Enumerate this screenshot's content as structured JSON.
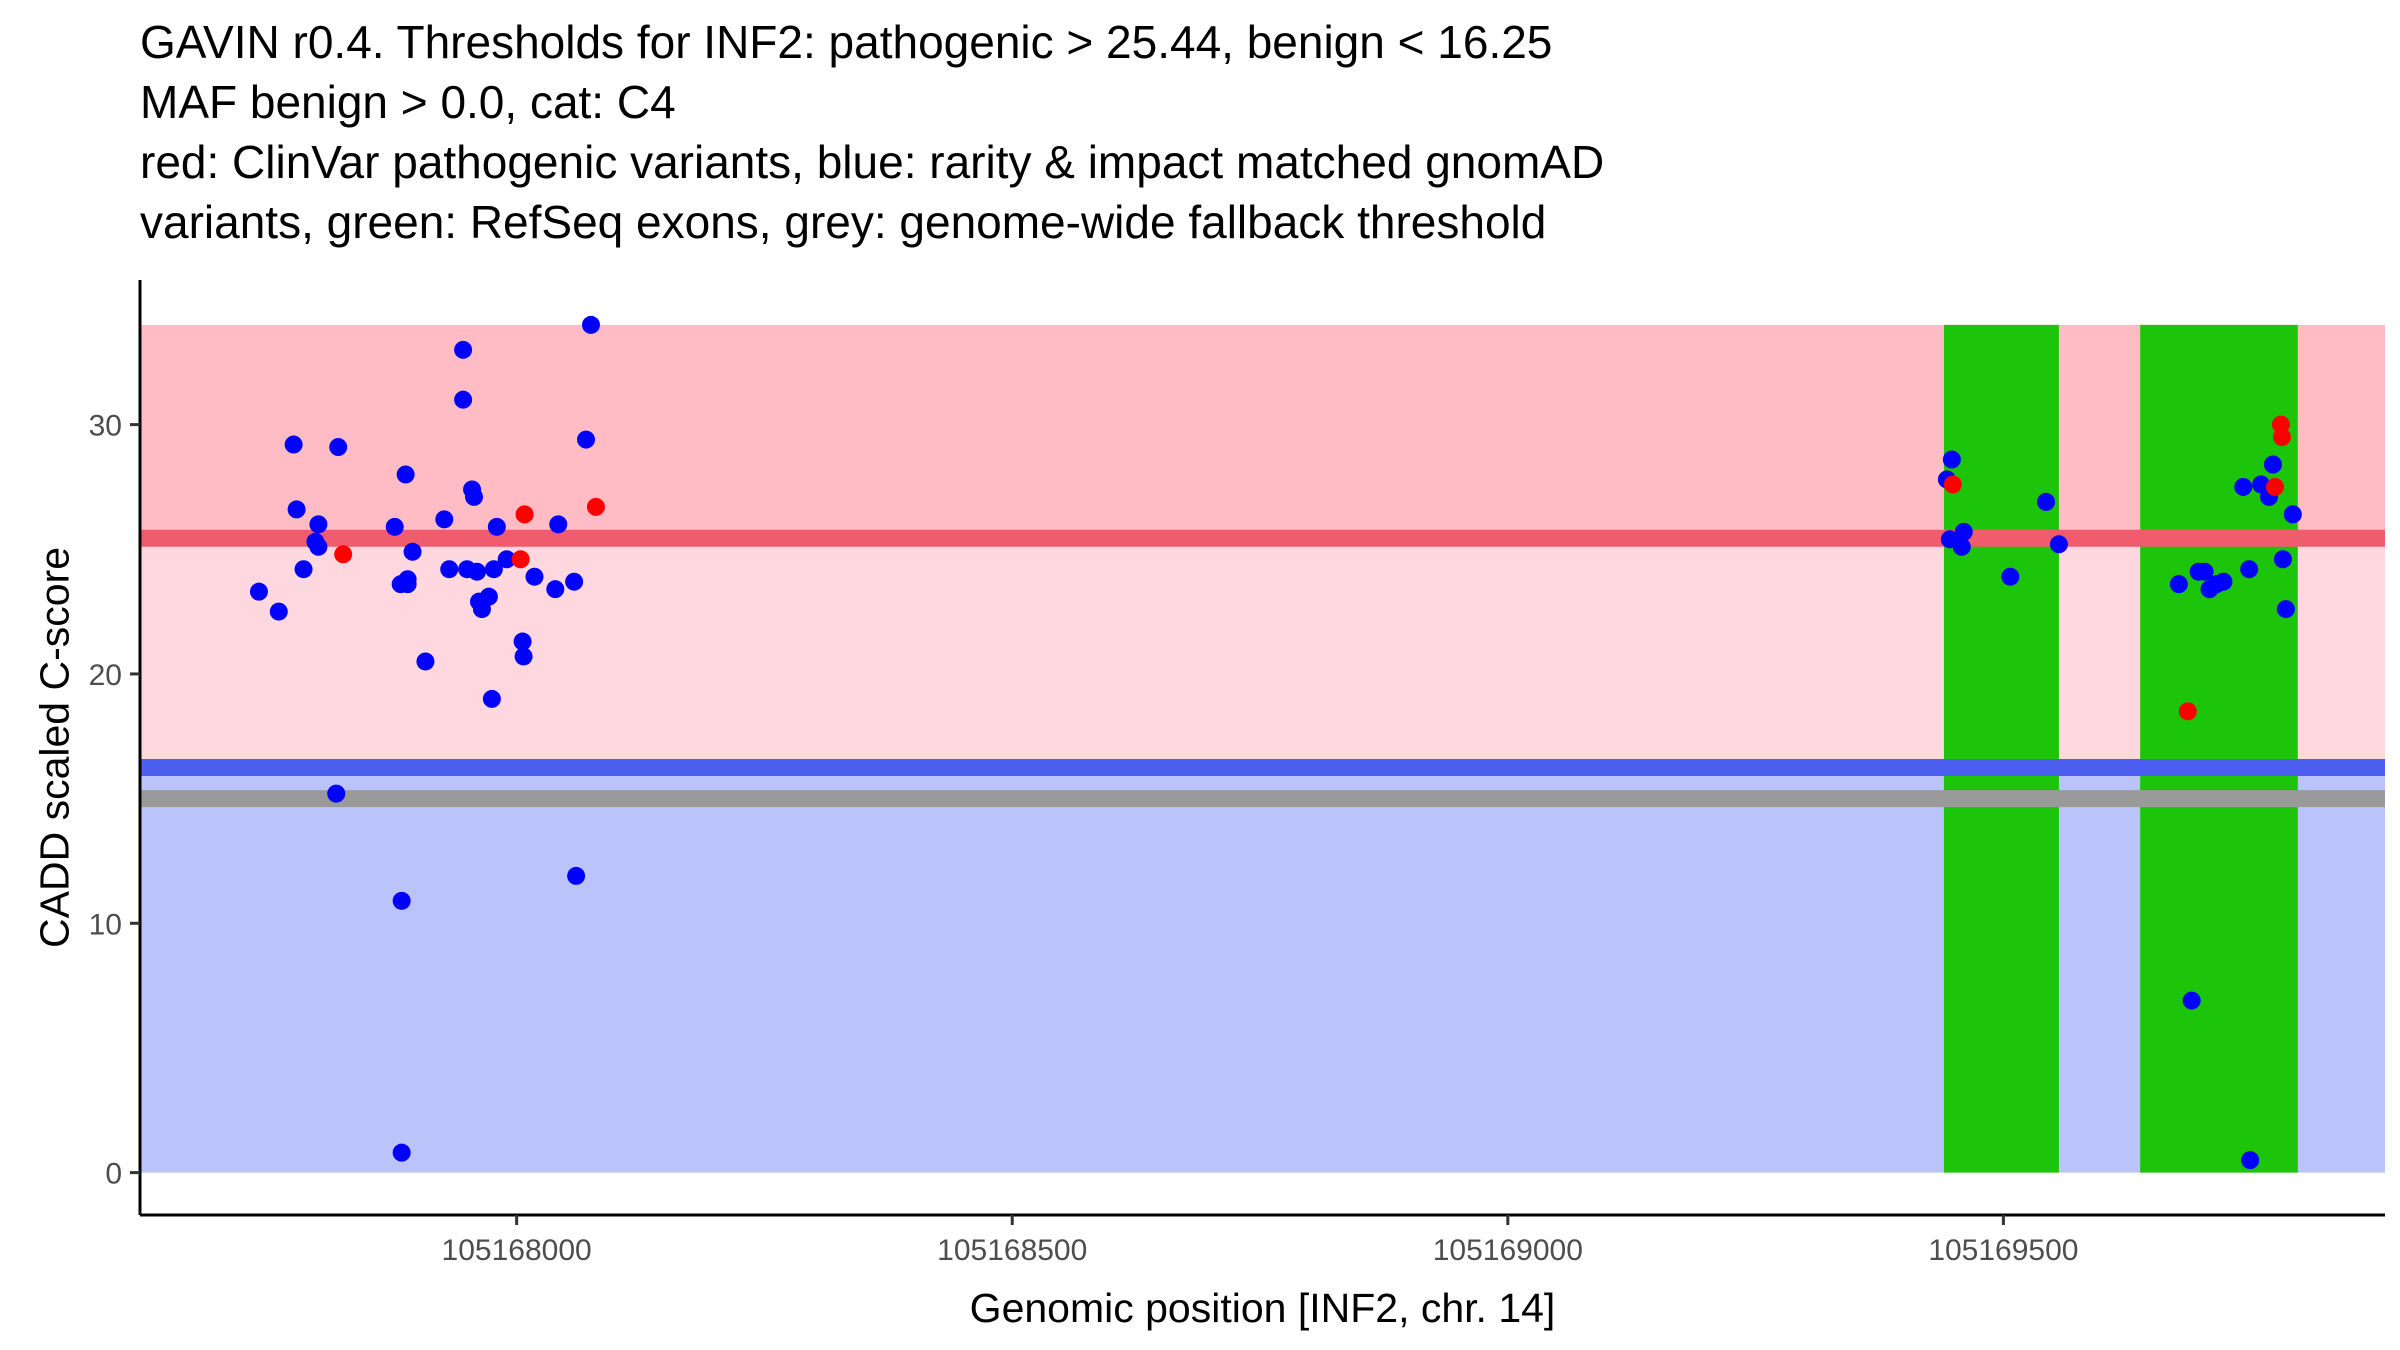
{
  "title_lines": [
    "GAVIN r0.4. Thresholds for INF2: pathogenic > 25.44, benign < 16.25",
    "MAF benign > 0.0, cat: C4",
    "red: ClinVar pathogenic variants, blue: rarity & impact matched gnomAD",
    "variants, green: RefSeq exons, grey: genome-wide fallback threshold"
  ],
  "chart_data": {
    "type": "scatter",
    "xlabel": "Genomic position [INF2, chr. 14]",
    "ylabel": "CADD scaled C-score",
    "xlim": [
      105167620,
      105169885
    ],
    "ylim": [
      -1.7,
      35.8
    ],
    "x_ticks": [
      105168000,
      105168500,
      105169000,
      105169500
    ],
    "y_ticks": [
      0,
      10,
      20,
      30
    ],
    "thresholds": {
      "pathogenic": 25.44,
      "benign": 16.25,
      "fallback": 15.0
    },
    "regions": [
      {
        "name": "pathogenic-region",
        "y": [
          25.44,
          34.0
        ],
        "color": "#ffbcc4"
      },
      {
        "name": "intermediate-region",
        "y": [
          16.25,
          25.44
        ],
        "color": "#ffd7de"
      },
      {
        "name": "benign-region",
        "y": [
          0.0,
          16.25
        ],
        "color": "#bbc3fb"
      }
    ],
    "exons": [
      {
        "start": 105169440,
        "end": 105169556,
        "color": "#1cc40a"
      },
      {
        "start": 105169638,
        "end": 105169797,
        "color": "#1cc40a"
      }
    ],
    "colors": {
      "pathogenic_line": "#f05b6d",
      "benign_line": "#4c5ff0",
      "fallback_line": "#9a9a9a",
      "pathogenic_points": "#ff0000",
      "benign_points": "#0000ff"
    },
    "series": [
      {
        "name": "rarity & impact matched gnomAD variants",
        "color": "#0000ff",
        "points": [
          [
            105167740,
            23.3
          ],
          [
            105167760,
            22.5
          ],
          [
            105167775,
            29.2
          ],
          [
            105167778,
            26.6
          ],
          [
            105167785,
            24.2
          ],
          [
            105167797,
            25.3
          ],
          [
            105167800,
            26.0
          ],
          [
            105167800,
            25.1
          ],
          [
            105167818,
            15.2
          ],
          [
            105167820,
            29.1
          ],
          [
            105167877,
            25.9
          ],
          [
            105167883,
            23.6
          ],
          [
            105167884,
            10.9
          ],
          [
            105167884,
            0.8
          ],
          [
            105167888,
            28.0
          ],
          [
            105167890,
            23.8
          ],
          [
            105167890,
            23.6
          ],
          [
            105167895,
            24.9
          ],
          [
            105167908,
            20.5
          ],
          [
            105167927,
            26.2
          ],
          [
            105167932,
            24.2
          ],
          [
            105167946,
            33.0
          ],
          [
            105167946,
            31.0
          ],
          [
            105167950,
            24.2
          ],
          [
            105167955,
            27.4
          ],
          [
            105167957,
            27.1
          ],
          [
            105167960,
            24.1
          ],
          [
            105167962,
            22.9
          ],
          [
            105167965,
            22.6
          ],
          [
            105167972,
            23.1
          ],
          [
            105167975,
            19.0
          ],
          [
            105167977,
            24.2
          ],
          [
            105167980,
            25.9
          ],
          [
            105167990,
            24.6
          ],
          [
            105168006,
            21.3
          ],
          [
            105168007,
            20.7
          ],
          [
            105168018,
            23.9
          ],
          [
            105168039,
            23.4
          ],
          [
            105168042,
            26.0
          ],
          [
            105168058,
            23.7
          ],
          [
            105168060,
            11.9
          ],
          [
            105168070,
            29.4
          ],
          [
            105168075,
            34.0
          ],
          [
            105169443,
            27.8
          ],
          [
            105169448,
            28.6
          ],
          [
            105169446,
            25.4
          ],
          [
            105169458,
            25.1
          ],
          [
            105169460,
            25.7
          ],
          [
            105169507,
            23.9
          ],
          [
            105169543,
            26.9
          ],
          [
            105169556,
            25.2
          ],
          [
            105169677,
            23.6
          ],
          [
            105169690,
            6.9
          ],
          [
            105169697,
            24.1
          ],
          [
            105169703,
            24.1
          ],
          [
            105169708,
            23.4
          ],
          [
            105169715,
            23.6
          ],
          [
            105169722,
            23.7
          ],
          [
            105169742,
            27.5
          ],
          [
            105169748,
            24.2
          ],
          [
            105169749,
            0.5
          ],
          [
            105169760,
            27.6
          ],
          [
            105169768,
            27.1
          ],
          [
            105169772,
            28.4
          ],
          [
            105169782,
            24.6
          ],
          [
            105169785,
            22.6
          ],
          [
            105169792,
            26.4
          ]
        ]
      },
      {
        "name": "ClinVar pathogenic variants",
        "color": "#ff0000",
        "points": [
          [
            105167825,
            24.8
          ],
          [
            105168004,
            24.6
          ],
          [
            105168008,
            26.4
          ],
          [
            105168080,
            26.7
          ],
          [
            105169449,
            27.6
          ],
          [
            105169686,
            18.5
          ],
          [
            105169774,
            27.5
          ],
          [
            105169780,
            30.0
          ],
          [
            105169781,
            29.5
          ]
        ]
      }
    ]
  }
}
